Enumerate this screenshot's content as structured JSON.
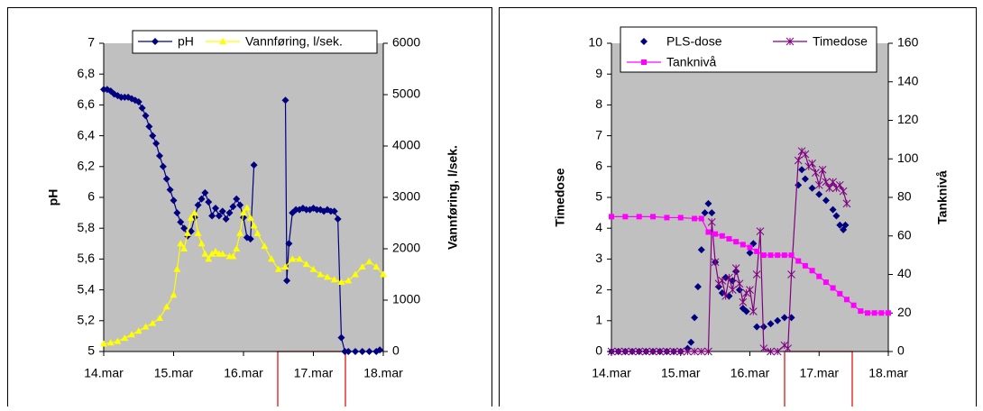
{
  "chart_data": [
    {
      "type": "line",
      "y_label": "pH",
      "y2_label": "Vannføring, l/sek.",
      "ylim": [
        5,
        7
      ],
      "yticks": [
        5,
        {
          "value": 5.2,
          "label": "5,2"
        },
        {
          "value": 5.4,
          "label": "5,4"
        },
        {
          "value": 5.6,
          "label": "5,6"
        },
        {
          "value": 5.8,
          "label": "5,8"
        },
        6,
        {
          "value": 6.2,
          "label": "6,2"
        },
        {
          "value": 6.4,
          "label": "6,4"
        },
        {
          "value": 6.6,
          "label": "6,6"
        },
        {
          "value": 6.8,
          "label": "6,8"
        },
        7
      ],
      "y2lim": [
        0,
        6000
      ],
      "y2ticks": [
        0,
        1000,
        2000,
        3000,
        4000,
        5000,
        6000
      ],
      "xlim": [
        14,
        18
      ],
      "xticks": [
        {
          "value": 14,
          "label": "14.mar"
        },
        {
          "value": 15,
          "label": "15.mar"
        },
        {
          "value": 16,
          "label": "16.mar"
        },
        {
          "value": 17,
          "label": "17.mar"
        },
        {
          "value": 18,
          "label": "18.mar"
        }
      ],
      "background": "#c0c0c0",
      "series": [
        {
          "name": "pH",
          "color": "#000080",
          "marker": "diamond",
          "axis": "y",
          "x": [
            14.0,
            14.05,
            14.1,
            14.15,
            14.2,
            14.25,
            14.3,
            14.35,
            14.4,
            14.45,
            14.5,
            14.55,
            14.6,
            14.65,
            14.7,
            14.75,
            14.8,
            14.85,
            14.9,
            14.95,
            15.0,
            15.05,
            15.1,
            15.15,
            15.2,
            15.25,
            15.3,
            15.35,
            15.4,
            15.45,
            15.5,
            15.55,
            15.6,
            15.65,
            15.7,
            15.75,
            15.8,
            15.85,
            15.9,
            15.95,
            16.0,
            16.05,
            16.1,
            16.15,
            16.4,
            16.6,
            16.62,
            16.65,
            16.7,
            16.75,
            16.8,
            16.85,
            16.9,
            16.95,
            17.0,
            17.05,
            17.1,
            17.15,
            17.2,
            17.25,
            17.3,
            17.35,
            17.4,
            17.45,
            17.5,
            17.6,
            17.7,
            17.8,
            17.9,
            17.95
          ],
          "values": [
            6.7,
            6.7,
            6.69,
            6.67,
            6.66,
            6.65,
            6.65,
            6.65,
            6.64,
            6.63,
            6.62,
            6.58,
            6.53,
            6.46,
            6.4,
            6.35,
            6.27,
            6.2,
            6.12,
            6.05,
            5.98,
            5.9,
            5.84,
            5.8,
            5.75,
            5.78,
            5.87,
            5.95,
            5.99,
            6.03,
            5.97,
            5.88,
            5.93,
            5.88,
            5.91,
            5.86,
            5.9,
            5.94,
            5.99,
            5.95,
            5.87,
            5.74,
            5.73,
            6.21,
            null,
            6.63,
            5.46,
            5.7,
            5.9,
            5.92,
            5.92,
            5.93,
            5.92,
            5.92,
            5.93,
            5.92,
            5.92,
            5.91,
            5.92,
            5.91,
            5.91,
            5.86,
            5.09,
            5.0,
            5.0,
            5.0,
            5.0,
            5.0,
            5.0,
            5.01
          ]
        },
        {
          "name": "Vannføring, l/sek.",
          "color": "#ffff00",
          "marker": "triangle",
          "axis": "y2",
          "x": [
            14.0,
            14.1,
            14.2,
            14.3,
            14.4,
            14.5,
            14.6,
            14.7,
            14.8,
            14.9,
            15.0,
            15.05,
            15.1,
            15.15,
            15.2,
            15.25,
            15.3,
            15.35,
            15.4,
            15.45,
            15.5,
            15.55,
            15.6,
            15.65,
            15.7,
            15.8,
            15.85,
            15.9,
            15.95,
            16.0,
            16.05,
            16.1,
            16.15,
            16.2,
            16.3,
            16.4,
            16.5,
            16.6,
            16.7,
            16.8,
            16.9,
            17.0,
            17.1,
            17.2,
            17.3,
            17.4,
            17.5,
            17.6,
            17.7,
            17.8,
            17.9,
            18.0
          ],
          "values": [
            150,
            170,
            200,
            260,
            330,
            400,
            480,
            550,
            650,
            870,
            1100,
            1600,
            2100,
            2000,
            2300,
            2600,
            2700,
            2300,
            2100,
            1900,
            1800,
            1900,
            1950,
            1900,
            1900,
            1850,
            1850,
            2000,
            2300,
            2700,
            2800,
            2600,
            2450,
            2300,
            2050,
            1800,
            1600,
            1650,
            1800,
            1800,
            1700,
            1600,
            1500,
            1450,
            1400,
            1350,
            1380,
            1500,
            1650,
            1750,
            1650,
            1500
          ]
        }
      ]
    },
    {
      "type": "line",
      "y_label": "Timedose",
      "y2_label": "Tanknivå",
      "ylim": [
        0,
        10
      ],
      "yticks": [
        0,
        1,
        2,
        3,
        4,
        5,
        6,
        7,
        8,
        9,
        10
      ],
      "y2lim": [
        0,
        160
      ],
      "y2ticks": [
        0,
        20,
        40,
        60,
        80,
        100,
        120,
        140,
        160
      ],
      "xlim": [
        14,
        18
      ],
      "xticks": [
        {
          "value": 14,
          "label": "14.mar"
        },
        {
          "value": 15,
          "label": "15.mar"
        },
        {
          "value": 16,
          "label": "16.mar"
        },
        {
          "value": 17,
          "label": "17.mar"
        },
        {
          "value": 18,
          "label": "18.mar"
        }
      ],
      "background": "#c0c0c0",
      "series": [
        {
          "name": "PLS-dose",
          "type": "scatter",
          "color": "#000080",
          "marker": "diamond",
          "axis": "y",
          "x": [
            14.0,
            14.1,
            14.2,
            14.3,
            14.4,
            14.5,
            14.6,
            14.7,
            14.8,
            14.9,
            15.0,
            15.1,
            15.15,
            15.2,
            15.25,
            15.3,
            15.35,
            15.4,
            15.45,
            15.5,
            15.55,
            15.6,
            15.65,
            15.7,
            15.75,
            15.8,
            15.85,
            15.9,
            15.95,
            16.0,
            16.05,
            16.1,
            16.2,
            16.3,
            16.4,
            16.5,
            16.6,
            16.7,
            16.75,
            16.8,
            16.9,
            17.0,
            17.1,
            17.2,
            17.25,
            17.3,
            17.35,
            17.38
          ],
          "values": [
            0,
            0,
            0,
            0,
            0,
            0,
            0,
            0,
            0,
            0,
            0,
            0.1,
            0.3,
            1.1,
            2.1,
            3.3,
            4.5,
            4.8,
            4.5,
            2.9,
            2.1,
            1.9,
            2.4,
            1.8,
            2.3,
            2.6,
            2.0,
            1.4,
            1.3,
            3.2,
            3.5,
            0.8,
            0.8,
            0.9,
            1.0,
            1.1,
            1.1,
            5.4,
            5.9,
            5.6,
            5.3,
            5.1,
            4.9,
            4.6,
            4.4,
            4.1,
            3.95,
            4.1
          ]
        },
        {
          "name": "Timedose",
          "color": "#800080",
          "marker": "star",
          "axis": "y",
          "x": [
            14.0,
            14.1,
            14.2,
            14.3,
            14.4,
            14.5,
            14.6,
            14.7,
            14.8,
            14.9,
            15.0,
            15.1,
            15.2,
            15.3,
            15.4,
            15.45,
            15.5,
            15.55,
            15.6,
            15.65,
            15.7,
            15.75,
            15.8,
            15.85,
            15.9,
            15.95,
            16.0,
            16.05,
            16.1,
            16.15,
            16.2,
            16.3,
            16.4,
            16.5,
            16.55,
            16.6,
            16.7,
            16.75,
            16.8,
            16.85,
            16.9,
            16.95,
            17.0,
            17.05,
            17.1,
            17.15,
            17.2,
            17.25,
            17.3,
            17.35,
            17.4
          ],
          "values": [
            0,
            0,
            0,
            0,
            0,
            0,
            0,
            0,
            0,
            0,
            0,
            0,
            0,
            0,
            0,
            4.2,
            2.9,
            2.2,
            2.3,
            1.8,
            2.4,
            2.0,
            2.7,
            2.2,
            1.6,
            1.9,
            2.0,
            1.3,
            2.5,
            3.9,
            0.1,
            0,
            0,
            0.2,
            0.1,
            2.5,
            6.2,
            6.5,
            6.4,
            6.0,
            6.1,
            5.8,
            5.4,
            5.9,
            5.5,
            5.3,
            5.5,
            5.3,
            5.4,
            5.2,
            4.8
          ]
        },
        {
          "name": "Tanknivå",
          "color": "#ff00ff",
          "marker": "square",
          "axis": "y2",
          "x": [
            14.0,
            14.2,
            14.4,
            14.6,
            14.8,
            15.0,
            15.2,
            15.3,
            15.4,
            15.5,
            15.6,
            15.7,
            15.8,
            15.9,
            16.0,
            16.1,
            16.2,
            16.3,
            16.4,
            16.5,
            16.6,
            16.7,
            16.8,
            16.9,
            17.0,
            17.1,
            17.2,
            17.3,
            17.4,
            17.5,
            17.6,
            17.7,
            17.8,
            17.9,
            18.0
          ],
          "values": [
            70,
            70,
            70,
            70,
            69.5,
            69.5,
            69,
            69,
            62,
            61,
            60,
            58.5,
            57,
            55.5,
            54,
            52,
            50,
            50,
            50,
            50,
            50,
            47,
            44.5,
            42,
            39,
            36,
            33,
            30,
            27,
            24,
            21,
            20,
            20,
            20,
            20
          ]
        }
      ]
    }
  ]
}
